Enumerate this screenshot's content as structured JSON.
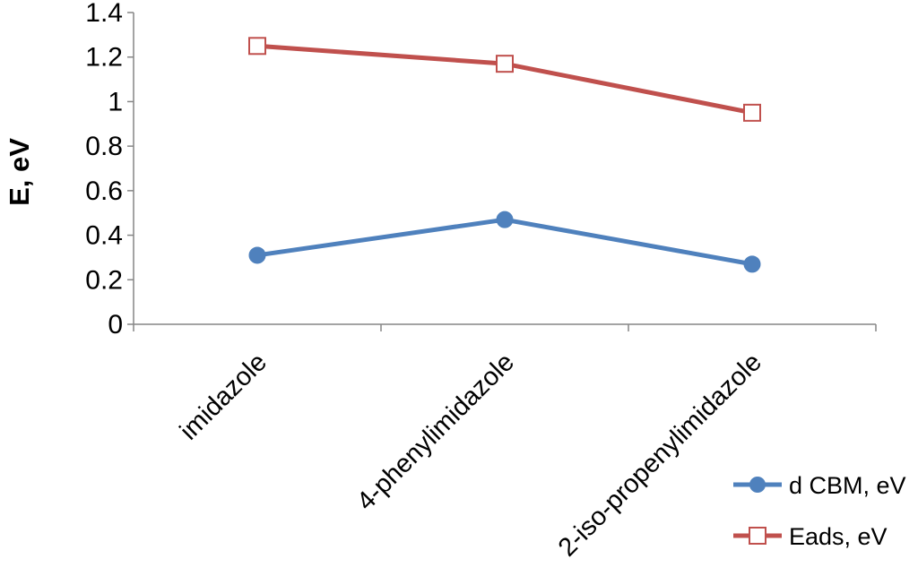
{
  "chart_data": {
    "type": "line",
    "title": "",
    "xlabel": "",
    "ylabel": "E, eV",
    "ylim": [
      0,
      1.4
    ],
    "yticks": [
      0,
      0.2,
      0.4,
      0.6,
      0.8,
      1,
      1.2,
      1.4
    ],
    "ytick_labels": [
      "0",
      "0.2",
      "0.4",
      "0.6",
      "0.8",
      "1",
      "1.2",
      "1.4"
    ],
    "categories": [
      "imidazole",
      "4-phenylimidazole",
      "2-iso-propenylimidazole"
    ],
    "grid": false,
    "legend_position": "bottom-right",
    "series": [
      {
        "name": "d CBM, eV",
        "values": [
          0.31,
          0.47,
          0.27
        ],
        "color": "#4f81bd",
        "marker": "filled-circle"
      },
      {
        "name": "Eads, eV",
        "values": [
          1.25,
          1.17,
          0.95
        ],
        "color": "#c0504d",
        "marker": "open-square"
      }
    ]
  }
}
